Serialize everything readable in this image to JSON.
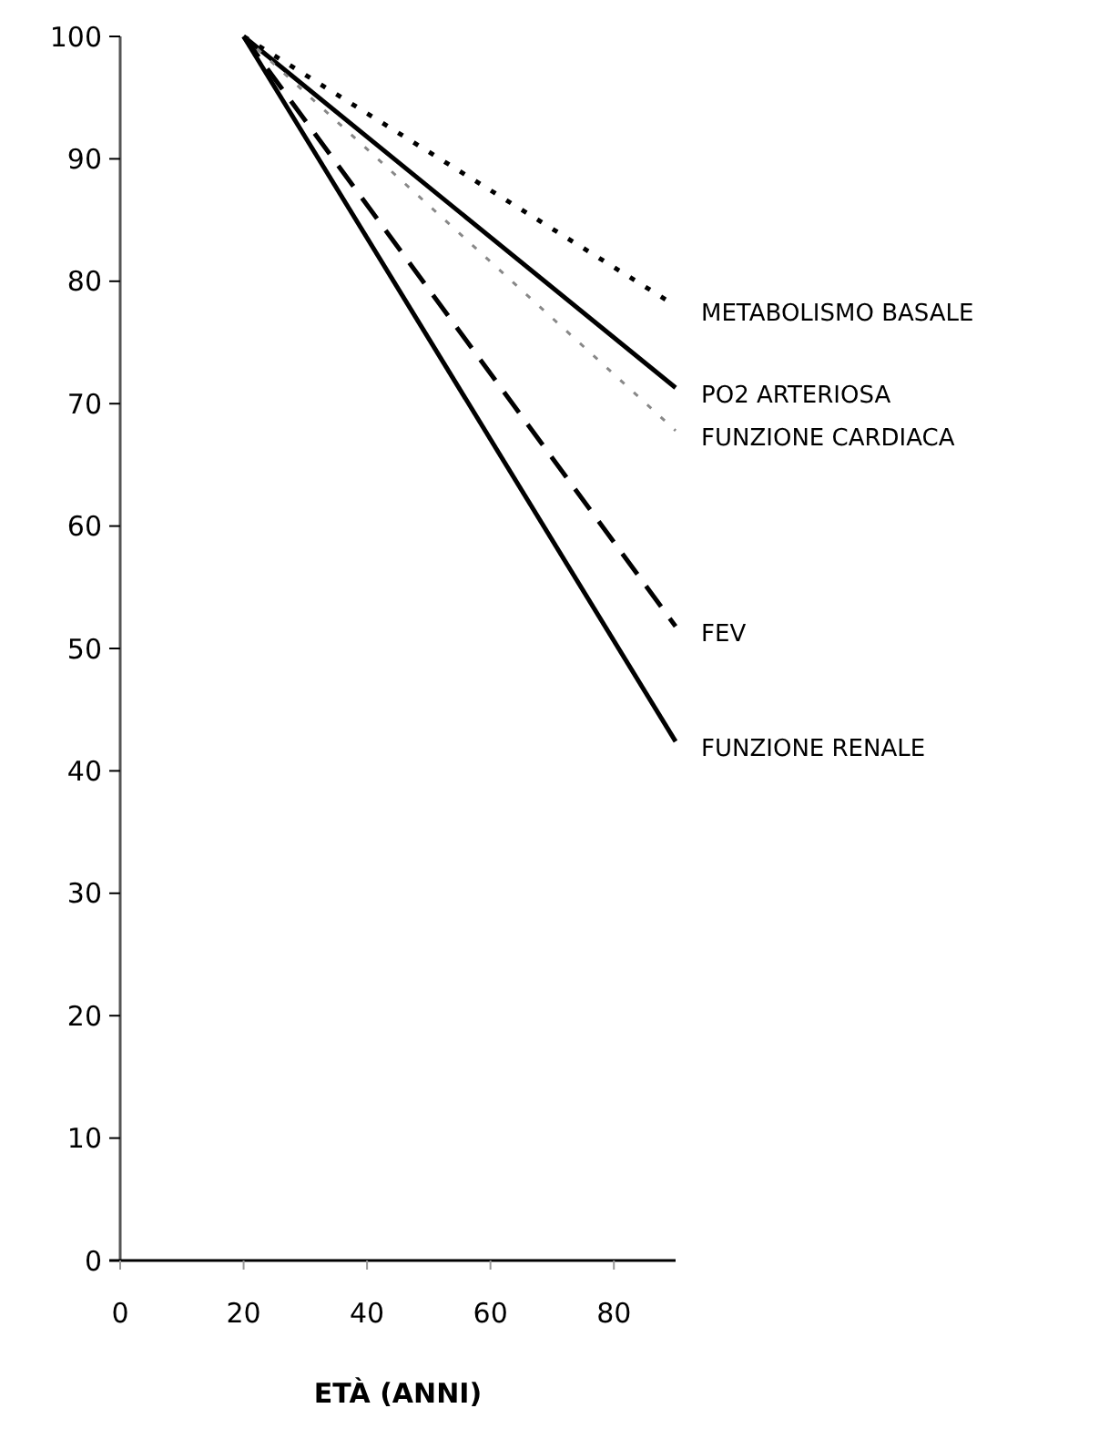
{
  "chart_data": {
    "type": "line",
    "xlabel": "ETÀ (ANNI)",
    "xlim": [
      0,
      90
    ],
    "xticks": [
      0,
      20,
      40,
      60,
      80
    ],
    "ylim": [
      0,
      100
    ],
    "yticks": [
      0,
      10,
      20,
      30,
      40,
      50,
      60,
      70,
      80,
      90,
      100
    ],
    "grid": false,
    "marker": "none",
    "x": [
      20,
      90
    ],
    "series": [
      {
        "name": "METABOLISMO BASALE",
        "color": "#000000",
        "line_style": "dotted",
        "values": [
          100,
          78
        ]
      },
      {
        "name": "PO2 ARTERIOSA",
        "color": "#000000",
        "line_style": "solid",
        "values": [
          100,
          71.3
        ]
      },
      {
        "name": "FUNZIONE CARDIACA",
        "color": "#888888",
        "line_style": "dotted",
        "values": [
          100,
          67.8
        ]
      },
      {
        "name": "FEV",
        "color": "#000000",
        "line_style": "dashed",
        "values": [
          100,
          51.8
        ]
      },
      {
        "name": "FUNZIONE RENALE",
        "color": "#000000",
        "line_style": "solid",
        "values": [
          100,
          42.4
        ]
      }
    ]
  }
}
